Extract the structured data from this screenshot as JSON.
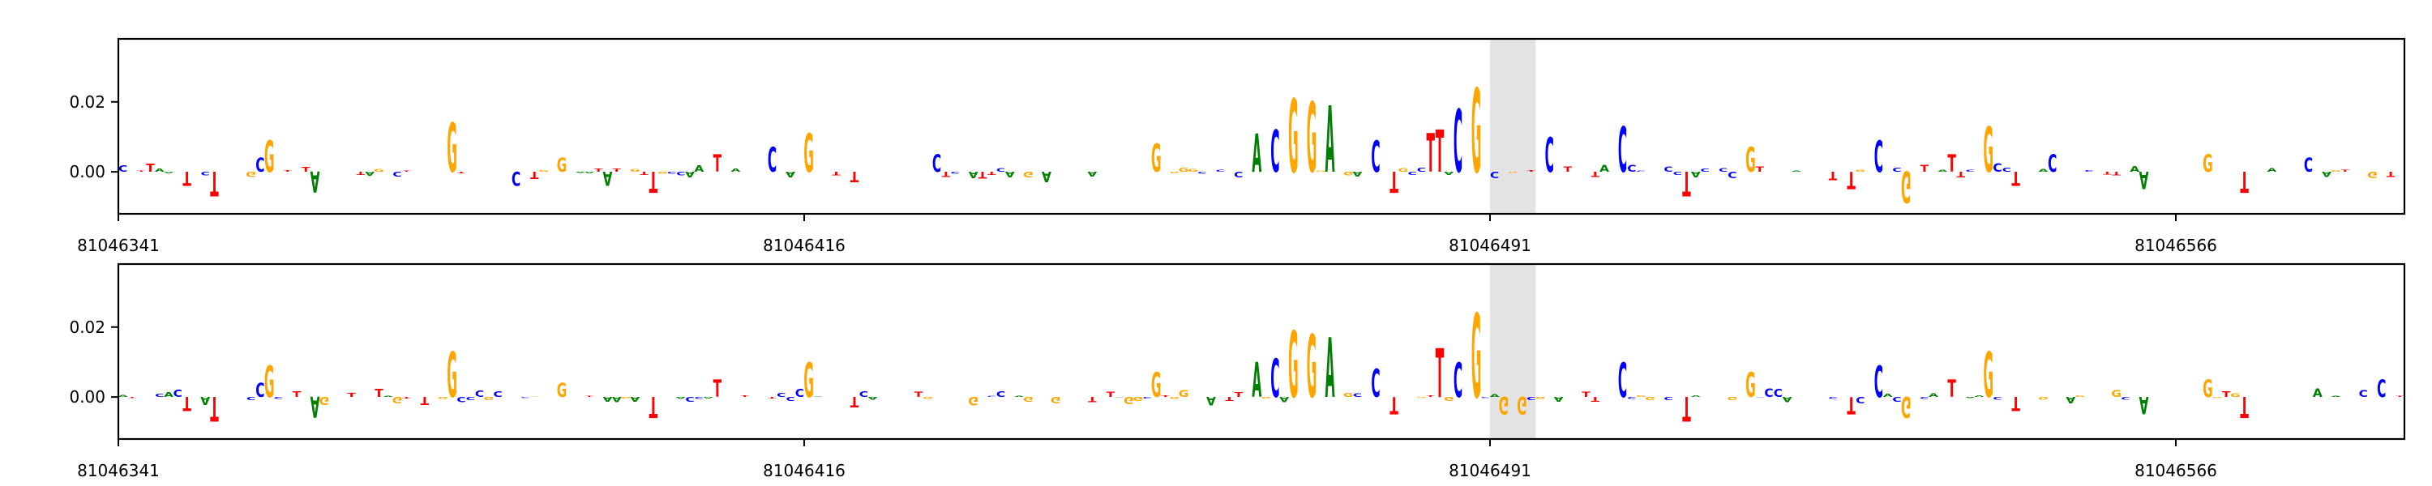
{
  "chart_data": [
    {
      "type": "sequence-logo",
      "title": "",
      "xlabel": "",
      "ylabel": "",
      "xlim": [
        81046341,
        81046591
      ],
      "ylim": [
        -0.012,
        0.038
      ],
      "yticks": [
        0.0,
        0.02
      ],
      "ytick_labels": [
        "0.00",
        "0.02"
      ],
      "xticks": [
        81046341,
        81046416,
        81046491,
        81046566
      ],
      "xtick_labels": [
        "81046341",
        "81046416",
        "81046491",
        "81046566"
      ],
      "highlight_range": [
        81046491,
        81046496
      ],
      "highlight_color": "#e3e3e3",
      "letter_colors": {
        "A": "#008000",
        "C": "#0000ff",
        "G": "#ffa500",
        "T": "#ff0000"
      },
      "peaks": [
        {
          "pos": 81046348,
          "letter": "T",
          "value": -0.004
        },
        {
          "pos": 81046351,
          "letter": "T",
          "value": -0.007
        },
        {
          "pos": 81046356,
          "letter": "C",
          "value": 0.004
        },
        {
          "pos": 81046357,
          "letter": "G",
          "value": 0.009
        },
        {
          "pos": 81046362,
          "letter": "A",
          "value": -0.006
        },
        {
          "pos": 81046377,
          "letter": "G",
          "value": 0.014
        },
        {
          "pos": 81046384,
          "letter": "C",
          "value": -0.004
        },
        {
          "pos": 81046389,
          "letter": "G",
          "value": 0.004
        },
        {
          "pos": 81046394,
          "letter": "A",
          "value": -0.004
        },
        {
          "pos": 81046399,
          "letter": "T",
          "value": -0.006
        },
        {
          "pos": 81046406,
          "letter": "T",
          "value": 0.005
        },
        {
          "pos": 81046412,
          "letter": "C",
          "value": 0.007
        },
        {
          "pos": 81046416,
          "letter": "G",
          "value": 0.011
        },
        {
          "pos": 81046421,
          "letter": "T",
          "value": -0.003
        },
        {
          "pos": 81046430,
          "letter": "C",
          "value": 0.005
        },
        {
          "pos": 81046442,
          "letter": "A",
          "value": -0.003
        },
        {
          "pos": 81046454,
          "letter": "G",
          "value": 0.008
        },
        {
          "pos": 81046465,
          "letter": "A",
          "value": 0.011
        },
        {
          "pos": 81046467,
          "letter": "C",
          "value": 0.012
        },
        {
          "pos": 81046469,
          "letter": "G",
          "value": 0.021
        },
        {
          "pos": 81046471,
          "letter": "G",
          "value": 0.02
        },
        {
          "pos": 81046473,
          "letter": "A",
          "value": 0.019
        },
        {
          "pos": 81046478,
          "letter": "C",
          "value": 0.009
        },
        {
          "pos": 81046480,
          "letter": "T",
          "value": -0.006
        },
        {
          "pos": 81046484,
          "letter": "T",
          "value": 0.011
        },
        {
          "pos": 81046485,
          "letter": "T",
          "value": 0.012
        },
        {
          "pos": 81046487,
          "letter": "C",
          "value": 0.018
        },
        {
          "pos": 81046489,
          "letter": "G",
          "value": 0.024
        },
        {
          "pos": 81046497,
          "letter": "C",
          "value": 0.01
        },
        {
          "pos": 81046505,
          "letter": "C",
          "value": 0.013
        },
        {
          "pos": 81046512,
          "letter": "T",
          "value": -0.007
        },
        {
          "pos": 81046519,
          "letter": "G",
          "value": 0.007
        },
        {
          "pos": 81046530,
          "letter": "T",
          "value": -0.005
        },
        {
          "pos": 81046533,
          "letter": "C",
          "value": 0.009
        },
        {
          "pos": 81046536,
          "letter": "G",
          "value": -0.009
        },
        {
          "pos": 81046541,
          "letter": "T",
          "value": 0.005
        },
        {
          "pos": 81046545,
          "letter": "G",
          "value": 0.013
        },
        {
          "pos": 81046548,
          "letter": "T",
          "value": -0.004
        },
        {
          "pos": 81046552,
          "letter": "C",
          "value": 0.005
        },
        {
          "pos": 81046562,
          "letter": "A",
          "value": -0.005
        },
        {
          "pos": 81046569,
          "letter": "G",
          "value": 0.005
        },
        {
          "pos": 81046573,
          "letter": "T",
          "value": -0.006
        },
        {
          "pos": 81046580,
          "letter": "C",
          "value": 0.004
        }
      ]
    },
    {
      "type": "sequence-logo",
      "title": "",
      "xlabel": "",
      "ylabel": "",
      "xlim": [
        81046341,
        81046591
      ],
      "ylim": [
        -0.012,
        0.038
      ],
      "yticks": [
        0.0,
        0.02
      ],
      "ytick_labels": [
        "0.00",
        "0.02"
      ],
      "xticks": [
        81046341,
        81046416,
        81046491,
        81046566
      ],
      "xtick_labels": [
        "81046341",
        "81046416",
        "81046491",
        "81046566"
      ],
      "highlight_range": [
        81046491,
        81046496
      ],
      "highlight_color": "#e3e3e3",
      "letter_colors": {
        "A": "#008000",
        "C": "#0000ff",
        "G": "#ffa500",
        "T": "#ff0000"
      },
      "peaks": [
        {
          "pos": 81046348,
          "letter": "T",
          "value": -0.004
        },
        {
          "pos": 81046351,
          "letter": "T",
          "value": -0.007
        },
        {
          "pos": 81046356,
          "letter": "C",
          "value": 0.004
        },
        {
          "pos": 81046357,
          "letter": "G",
          "value": 0.009
        },
        {
          "pos": 81046362,
          "letter": "A",
          "value": -0.006
        },
        {
          "pos": 81046377,
          "letter": "G",
          "value": 0.013
        },
        {
          "pos": 81046389,
          "letter": "G",
          "value": 0.004
        },
        {
          "pos": 81046399,
          "letter": "T",
          "value": -0.006
        },
        {
          "pos": 81046406,
          "letter": "T",
          "value": 0.005
        },
        {
          "pos": 81046416,
          "letter": "G",
          "value": 0.01
        },
        {
          "pos": 81046421,
          "letter": "T",
          "value": -0.003
        },
        {
          "pos": 81046454,
          "letter": "G",
          "value": 0.007
        },
        {
          "pos": 81046465,
          "letter": "A",
          "value": 0.01
        },
        {
          "pos": 81046467,
          "letter": "C",
          "value": 0.011
        },
        {
          "pos": 81046469,
          "letter": "G",
          "value": 0.019
        },
        {
          "pos": 81046471,
          "letter": "G",
          "value": 0.018
        },
        {
          "pos": 81046473,
          "letter": "A",
          "value": 0.017
        },
        {
          "pos": 81046478,
          "letter": "C",
          "value": 0.008
        },
        {
          "pos": 81046480,
          "letter": "T",
          "value": -0.005
        },
        {
          "pos": 81046485,
          "letter": "T",
          "value": 0.014
        },
        {
          "pos": 81046487,
          "letter": "C",
          "value": 0.01
        },
        {
          "pos": 81046489,
          "letter": "G",
          "value": 0.024
        },
        {
          "pos": 81046492,
          "letter": "G",
          "value": -0.005
        },
        {
          "pos": 81046494,
          "letter": "G",
          "value": -0.005
        },
        {
          "pos": 81046505,
          "letter": "C",
          "value": 0.01
        },
        {
          "pos": 81046512,
          "letter": "T",
          "value": -0.007
        },
        {
          "pos": 81046519,
          "letter": "G",
          "value": 0.007
        },
        {
          "pos": 81046530,
          "letter": "T",
          "value": -0.005
        },
        {
          "pos": 81046533,
          "letter": "C",
          "value": 0.009
        },
        {
          "pos": 81046536,
          "letter": "G",
          "value": -0.006
        },
        {
          "pos": 81046541,
          "letter": "T",
          "value": 0.005
        },
        {
          "pos": 81046545,
          "letter": "G",
          "value": 0.013
        },
        {
          "pos": 81046548,
          "letter": "T",
          "value": -0.004
        },
        {
          "pos": 81046562,
          "letter": "A",
          "value": -0.005
        },
        {
          "pos": 81046569,
          "letter": "G",
          "value": 0.005
        },
        {
          "pos": 81046573,
          "letter": "T",
          "value": -0.006
        },
        {
          "pos": 81046588,
          "letter": "C",
          "value": 0.005
        }
      ]
    }
  ]
}
